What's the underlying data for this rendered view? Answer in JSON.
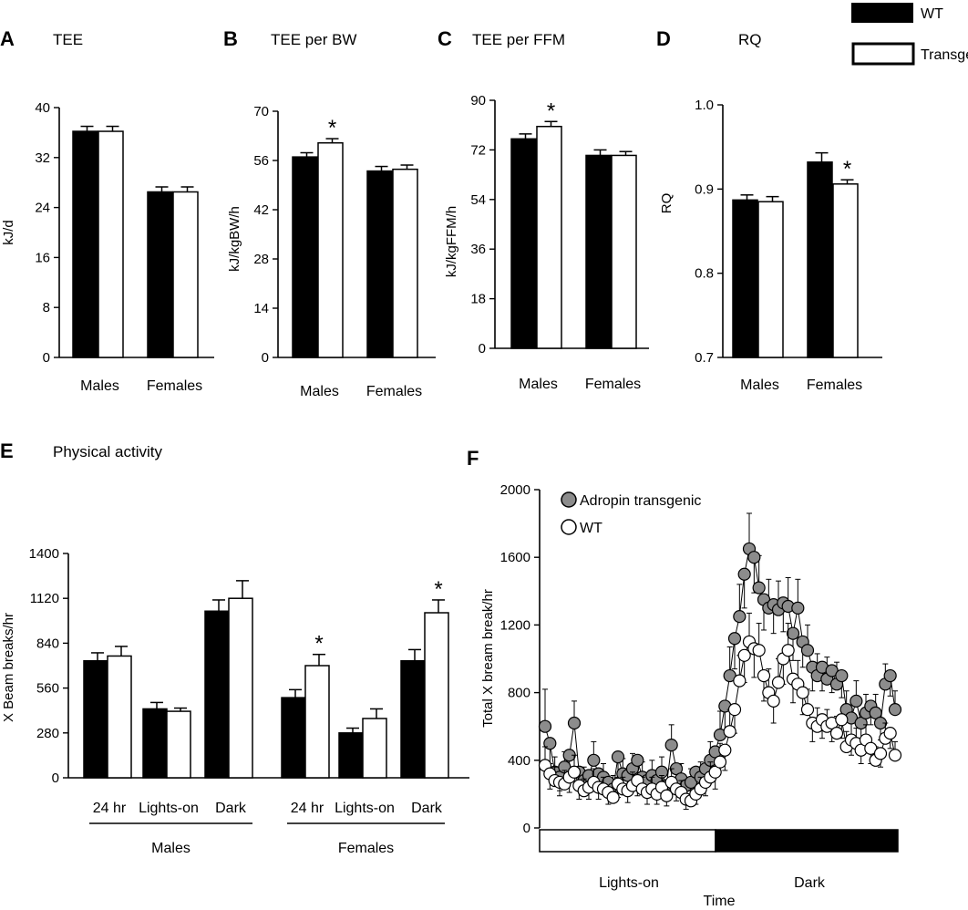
{
  "legend": {
    "wt": "WT",
    "transgenic": "Transgenic"
  },
  "panels": [
    {
      "id": "A",
      "title": "TEE",
      "ylabel": "kJ/d",
      "ylim": [
        0,
        40
      ],
      "yticks": [
        0,
        8,
        16,
        24,
        32,
        40
      ]
    },
    {
      "id": "B",
      "title": "TEE per BW",
      "ylabel": "kJ/kgBW/h",
      "ylim": [
        0,
        70
      ],
      "yticks": [
        0,
        14,
        28,
        42,
        56,
        70
      ]
    },
    {
      "id": "C",
      "title": "TEE per FFM",
      "ylabel": "kJ/kgFFM/h",
      "ylim": [
        0,
        90
      ],
      "yticks": [
        0,
        18,
        36,
        54,
        72,
        90
      ]
    },
    {
      "id": "D",
      "title": "RQ",
      "ylabel": "RQ",
      "ylim": [
        0.7,
        1.0
      ],
      "yticks": [
        "0.7",
        "0.8",
        "0.9",
        "1.0"
      ]
    },
    {
      "id": "E",
      "title": "Physical activity",
      "ylabel": "X Beam breaks/hr",
      "ylim": [
        0,
        1400
      ],
      "yticks": [
        0,
        280,
        560,
        840,
        1120,
        1400
      ]
    },
    {
      "id": "F",
      "title": "",
      "ylabel": "Total X bream break/hr",
      "xlabel": "Time",
      "ylim": [
        0,
        2000
      ],
      "yticks": [
        0,
        400,
        800,
        1200,
        1600,
        2000
      ]
    }
  ],
  "chart_data": [
    {
      "type": "bar",
      "panel": "A",
      "title": "TEE",
      "ylabel": "kJ/d",
      "ylim": [
        0,
        40
      ],
      "categories": [
        "Males",
        "Females"
      ],
      "series": [
        {
          "name": "WT",
          "values": [
            36.2,
            26.5
          ],
          "errors": [
            0.8,
            0.8
          ]
        },
        {
          "name": "Transgenic",
          "values": [
            36.2,
            26.5
          ],
          "errors": [
            0.8,
            0.8
          ]
        }
      ],
      "significance": []
    },
    {
      "type": "bar",
      "panel": "B",
      "title": "TEE per BW",
      "ylabel": "kJ/kgBW/h",
      "ylim": [
        0,
        70
      ],
      "categories": [
        "Males",
        "Females"
      ],
      "series": [
        {
          "name": "WT",
          "values": [
            57,
            53
          ],
          "errors": [
            1.2,
            1.3
          ]
        },
        {
          "name": "Transgenic",
          "values": [
            61,
            53.5
          ],
          "errors": [
            1.2,
            1.2
          ]
        }
      ],
      "significance": [
        {
          "category": 0,
          "series": 1,
          "label": "*"
        }
      ]
    },
    {
      "type": "bar",
      "panel": "C",
      "title": "TEE per FFM",
      "ylabel": "kJ/kgFFM/h",
      "ylim": [
        0,
        90
      ],
      "categories": [
        "Males",
        "Females"
      ],
      "series": [
        {
          "name": "WT",
          "values": [
            76,
            70
          ],
          "errors": [
            1.8,
            2
          ]
        },
        {
          "name": "Transgenic",
          "values": [
            80.5,
            70
          ],
          "errors": [
            1.8,
            1.4
          ]
        }
      ],
      "significance": [
        {
          "category": 0,
          "series": 1,
          "label": "*"
        }
      ]
    },
    {
      "type": "bar",
      "panel": "D",
      "title": "RQ",
      "ylabel": "RQ",
      "ylim": [
        0.7,
        1.0
      ],
      "categories": [
        "Males",
        "Females"
      ],
      "series": [
        {
          "name": "WT",
          "values": [
            0.887,
            0.932
          ],
          "errors": [
            0.006,
            0.011
          ]
        },
        {
          "name": "Transgenic",
          "values": [
            0.885,
            0.906
          ],
          "errors": [
            0.006,
            0.005
          ]
        }
      ],
      "significance": [
        {
          "category": 1,
          "series": 1,
          "label": "*"
        }
      ]
    },
    {
      "type": "bar",
      "panel": "E",
      "title": "Physical activity",
      "ylabel": "X Beam breaks/hr",
      "ylim": [
        0,
        1400
      ],
      "categories": [
        "24 hr",
        "Lights-on",
        "Dark",
        "24 hr",
        "Lights-on",
        "Dark"
      ],
      "groups": [
        {
          "label": "Males",
          "categories": [
            0,
            1,
            2
          ]
        },
        {
          "label": "Females",
          "categories": [
            3,
            4,
            5
          ]
        }
      ],
      "series": [
        {
          "name": "WT",
          "values": [
            730,
            430,
            1040,
            500,
            280,
            730
          ],
          "errors": [
            50,
            40,
            70,
            50,
            30,
            70
          ]
        },
        {
          "name": "Transgenic",
          "values": [
            760,
            415,
            1120,
            700,
            370,
            1030
          ],
          "errors": [
            60,
            20,
            110,
            70,
            60,
            80
          ]
        }
      ],
      "significance": [
        {
          "category": 3,
          "series": 1,
          "label": "*"
        },
        {
          "category": 5,
          "series": 1,
          "label": "*"
        }
      ]
    },
    {
      "type": "line",
      "panel": "F",
      "ylabel": "Total X bream break/hr",
      "xlabel": "Time",
      "ylim": [
        0,
        2000
      ],
      "light_phases": [
        {
          "label": "Lights-on",
          "fill": "white"
        },
        {
          "label": "Dark",
          "fill": "black"
        }
      ],
      "dark_starts_at_index": 36,
      "series": [
        {
          "name": "Adropin transgenic",
          "color": "#8c8c8c",
          "values": [
            600,
            500,
            330,
            300,
            360,
            430,
            620,
            330,
            280,
            310,
            400,
            320,
            300,
            270,
            230,
            420,
            320,
            310,
            350,
            400,
            300,
            280,
            310,
            280,
            330,
            250,
            490,
            350,
            290,
            250,
            270,
            330,
            300,
            350,
            400,
            450,
            550,
            720,
            900,
            1120,
            1250,
            1500,
            1650,
            1600,
            1420,
            1350,
            1300,
            1320,
            1290,
            1330,
            1310,
            1150,
            1300,
            1100,
            1050,
            950,
            900,
            950,
            880,
            930,
            850,
            900,
            700,
            650,
            750,
            620,
            680,
            720,
            680,
            620,
            850,
            900,
            700
          ],
          "errors": [
            220,
            120,
            90,
            80,
            90,
            110,
            130,
            90,
            80,
            90,
            110,
            90,
            80,
            80,
            80,
            120,
            90,
            90,
            90,
            110,
            90,
            80,
            90,
            80,
            90,
            80,
            120,
            100,
            90,
            80,
            80,
            90,
            90,
            100,
            110,
            120,
            140,
            160,
            170,
            180,
            190,
            200,
            210,
            210,
            190,
            180,
            170,
            170,
            170,
            170,
            170,
            160,
            170,
            150,
            150,
            140,
            130,
            140,
            130,
            130,
            130,
            130,
            110,
            110,
            120,
            100,
            110,
            110,
            110,
            100,
            120,
            120,
            110
          ]
        },
        {
          "name": "WT",
          "color": "#ffffff",
          "values": [
            370,
            320,
            280,
            270,
            260,
            300,
            330,
            250,
            220,
            240,
            270,
            240,
            230,
            210,
            180,
            260,
            230,
            220,
            250,
            280,
            230,
            210,
            230,
            200,
            240,
            190,
            270,
            230,
            210,
            170,
            160,
            200,
            230,
            270,
            300,
            330,
            390,
            460,
            570,
            700,
            870,
            1020,
            1100,
            1060,
            1050,
            900,
            800,
            750,
            860,
            1000,
            1050,
            880,
            850,
            800,
            700,
            620,
            600,
            640,
            600,
            620,
            560,
            640,
            480,
            520,
            500,
            460,
            520,
            470,
            400,
            440,
            530,
            560,
            430
          ],
          "errors": [
            110,
            90,
            80,
            80,
            80,
            90,
            100,
            80,
            70,
            70,
            80,
            70,
            70,
            70,
            60,
            80,
            70,
            70,
            80,
            90,
            70,
            70,
            70,
            60,
            70,
            60,
            80,
            70,
            70,
            60,
            60,
            60,
            70,
            80,
            90,
            100,
            110,
            120,
            130,
            140,
            150,
            160,
            170,
            170,
            160,
            150,
            140,
            130,
            140,
            150,
            160,
            140,
            140,
            130,
            120,
            110,
            110,
            110,
            100,
            110,
            100,
            110,
            90,
            90,
            90,
            80,
            90,
            90,
            80,
            80,
            90,
            90,
            80
          ]
        }
      ]
    }
  ]
}
